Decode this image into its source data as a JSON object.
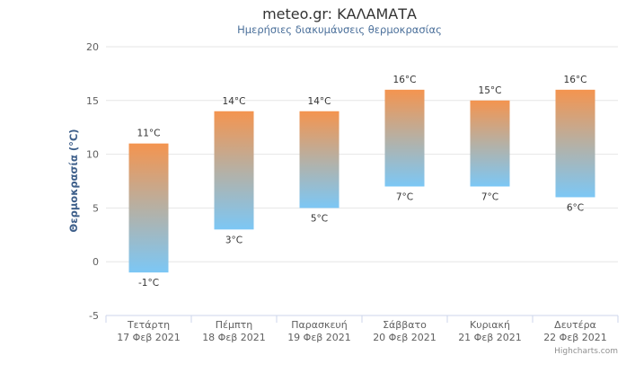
{
  "chart_data": {
    "type": "bar",
    "subtype": "columnrange",
    "title": "meteo.gr: ΚΑΛΑΜΑΤΑ",
    "subtitle": "Ημερήσιες διακυμάνσεις θερμοκρασίας",
    "ylabel": "Θερμοκρασία (°C)",
    "xlabel": "",
    "ylim": [
      -5,
      20
    ],
    "yticks": [
      -5,
      0,
      5,
      10,
      15,
      20
    ],
    "grid": true,
    "legend": "none",
    "categories": [
      [
        "Τετάρτη",
        "17 Φεβ 2021"
      ],
      [
        "Πέμπτη",
        "18 Φεβ 2021"
      ],
      [
        "Παρασκευή",
        "19 Φεβ 2021"
      ],
      [
        "Σάββατο",
        "20 Φεβ 2021"
      ],
      [
        "Κυριακή",
        "21 Φεβ 2021"
      ],
      [
        "Δευτέρα",
        "22 Φεβ 2021"
      ]
    ],
    "series": [
      {
        "low": [
          -1,
          3,
          5,
          7,
          7,
          6
        ],
        "high": [
          11,
          14,
          14,
          16,
          15,
          16
        ],
        "low_labels": [
          "-1°C",
          "3°C",
          "5°C",
          "7°C",
          "7°C",
          "6°C"
        ],
        "high_labels": [
          "11°C",
          "14°C",
          "14°C",
          "16°C",
          "15°C",
          "16°C"
        ]
      }
    ],
    "colors": {
      "top": "#f4944f",
      "bottom": "#7cc7f5",
      "grid": "#e6e6e6",
      "axis": "#ccd6eb"
    }
  },
  "credits": "Highcharts.com"
}
